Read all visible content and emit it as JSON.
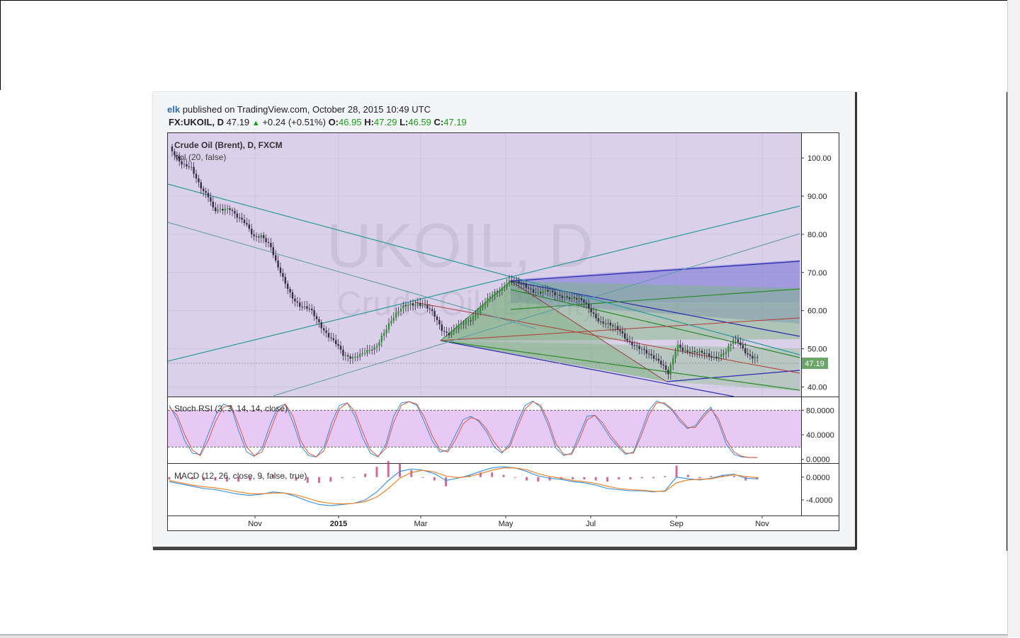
{
  "header": {
    "author": "elk",
    "published_text": "published on TradingView.com, October 28, 2015 10:49 UTC",
    "symbol": "FX:UKOIL, D",
    "last": "47.19",
    "arrow": "▲",
    "change": "+0.24 (+0.51%)",
    "open_label": "O:",
    "open": "46.95",
    "high_label": "H:",
    "high": "47.29",
    "low_label": "L:",
    "low": "46.59",
    "close_label": "C:",
    "close": "47.19"
  },
  "chart_data": [
    {
      "type": "candlestick",
      "title": "Crude Oil (Brent), D, FXCM",
      "indicator_label": "Vol (20, false)",
      "watermark_main": "UKOIL, D",
      "watermark_sub": "Crude Oil (Brent)",
      "x_tick_labels": [
        "Nov",
        "2015",
        "Mar",
        "May",
        "Jul",
        "Sep",
        "Nov"
      ],
      "y_ticks": [
        100,
        90,
        80,
        70,
        60,
        50,
        40
      ],
      "y_tick_labels": [
        "100.00",
        "90.00",
        "80.00",
        "70.00",
        "60.00",
        "50.00",
        "40.00"
      ],
      "ylim": [
        37.5,
        106.5
      ],
      "last_price_label": "47.19",
      "last_price": 47.19,
      "price_path": [
        [
          0,
          103
        ],
        [
          8,
          101
        ],
        [
          18,
          98
        ],
        [
          30,
          97
        ],
        [
          42,
          93
        ],
        [
          55,
          90
        ],
        [
          62,
          86
        ],
        [
          72,
          86
        ],
        [
          85,
          87
        ],
        [
          95,
          85
        ],
        [
          105,
          83
        ],
        [
          118,
          79
        ],
        [
          130,
          80
        ],
        [
          142,
          77
        ],
        [
          150,
          72
        ],
        [
          160,
          68
        ],
        [
          172,
          64
        ],
        [
          185,
          61
        ],
        [
          198,
          60
        ],
        [
          210,
          57
        ],
        [
          222,
          54
        ],
        [
          235,
          51
        ],
        [
          245,
          48
        ],
        [
          255,
          48
        ],
        [
          265,
          48.5
        ],
        [
          278,
          49
        ],
        [
          290,
          50
        ],
        [
          300,
          54
        ],
        [
          310,
          57
        ],
        [
          320,
          59
        ],
        [
          330,
          61
        ],
        [
          340,
          62
        ],
        [
          350,
          62
        ],
        [
          360,
          61
        ],
        [
          372,
          59
        ],
        [
          385,
          55
        ],
        [
          395,
          54
        ],
        [
          410,
          56
        ],
        [
          425,
          58
        ],
        [
          440,
          61
        ],
        [
          455,
          64
        ],
        [
          468,
          66
        ],
        [
          478,
          68
        ],
        [
          490,
          67
        ],
        [
          505,
          66
        ],
        [
          518,
          65
        ],
        [
          532,
          65
        ],
        [
          545,
          64
        ],
        [
          558,
          64
        ],
        [
          572,
          63
        ],
        [
          585,
          62
        ],
        [
          595,
          60
        ],
        [
          608,
          57
        ],
        [
          620,
          56
        ],
        [
          635,
          55
        ],
        [
          648,
          52
        ],
        [
          660,
          50
        ],
        [
          672,
          49
        ],
        [
          685,
          48
        ],
        [
          695,
          46
        ],
        [
          703,
          43
        ],
        [
          710,
          47
        ],
        [
          716,
          51
        ],
        [
          725,
          50
        ],
        [
          740,
          49
        ],
        [
          755,
          48.5
        ],
        [
          770,
          48
        ],
        [
          785,
          49
        ],
        [
          795,
          52
        ],
        [
          802,
          52
        ],
        [
          810,
          50
        ],
        [
          820,
          48
        ],
        [
          830,
          47.2
        ]
      ]
    },
    {
      "type": "line",
      "title": "Stoch RSI (3, 3, 14, 14, close)",
      "y_ticks": [
        80,
        40,
        0
      ],
      "y_tick_labels": [
        "80.0000",
        "40.0000",
        "0.0000"
      ],
      "ylim": [
        -5,
        100
      ],
      "band": [
        20,
        80
      ],
      "series": [
        {
          "color": "#2f8ee0",
          "values": [
            88,
            65,
            30,
            10,
            8,
            40,
            72,
            90,
            85,
            45,
            12,
            5,
            18,
            55,
            85,
            90,
            60,
            22,
            6,
            4,
            20,
            60,
            88,
            92,
            70,
            35,
            10,
            4,
            25,
            70,
            92,
            94,
            88,
            60,
            30,
            12,
            15,
            40,
            65,
            70,
            62,
            45,
            20,
            10,
            25,
            60,
            88,
            95,
            85,
            55,
            18,
            6,
            10,
            40,
            70,
            72,
            55,
            35,
            20,
            8,
            12,
            45,
            80,
            95,
            90,
            80,
            62,
            50,
            55,
            72,
            85,
            60,
            25,
            8,
            4,
            3,
            3
          ]
        },
        {
          "color": "#e0553a",
          "values": [
            85,
            72,
            40,
            15,
            6,
            30,
            62,
            85,
            88,
            55,
            20,
            6,
            12,
            45,
            78,
            90,
            70,
            30,
            10,
            4,
            14,
            50,
            82,
            92,
            78,
            45,
            15,
            5,
            18,
            60,
            88,
            94,
            90,
            68,
            38,
            16,
            12,
            32,
            58,
            68,
            64,
            50,
            28,
            12,
            20,
            52,
            82,
            94,
            88,
            62,
            25,
            8,
            8,
            32,
            64,
            72,
            60,
            40,
            24,
            10,
            10,
            38,
            72,
            92,
            92,
            82,
            66,
            52,
            52,
            68,
            82,
            66,
            32,
            12,
            5,
            3,
            3
          ]
        }
      ]
    },
    {
      "type": "line",
      "title": "MACD (12, 26, close, 9, false, true)",
      "y_ticks": [
        0,
        -4
      ],
      "y_tick_labels": [
        "0.0000",
        "-4.0000"
      ],
      "ylim": [
        -6.6,
        2.2
      ],
      "series": [
        {
          "color": "#2f8ee0",
          "values": [
            -0.8,
            -1.2,
            -1.6,
            -2,
            -2.2,
            -2.6,
            -3,
            -3.2,
            -3,
            -2.6,
            -2.8,
            -3.4,
            -4.2,
            -4.8,
            -5,
            -4.8,
            -4.6,
            -4,
            -2.6,
            -0.6,
            1,
            1.4,
            1.2,
            0.6,
            -0.6,
            -0.2,
            0.3,
            1,
            1.6,
            1.8,
            1.6,
            1,
            0.2,
            -0.2,
            -0.4,
            -0.8,
            -1,
            -1.4,
            -2,
            -2.2,
            -2.4,
            -2.4,
            -2.6,
            -2.4,
            0,
            -0.3,
            -0.5,
            -0.2,
            0.3,
            0.5,
            -0.2,
            -0.3
          ]
        },
        {
          "color": "#f07a1a",
          "values": [
            -0.6,
            -1,
            -1.4,
            -1.7,
            -1.9,
            -2.2,
            -2.6,
            -2.9,
            -2.9,
            -2.8,
            -2.8,
            -3.1,
            -3.7,
            -4.3,
            -4.6,
            -4.7,
            -4.6,
            -4.3,
            -3.5,
            -2,
            -0.2,
            0.8,
            1.2,
            0.9,
            0.2,
            -0.1,
            0.1,
            0.6,
            1.2,
            1.6,
            1.6,
            1.3,
            0.6,
            0.1,
            -0.2,
            -0.6,
            -0.8,
            -1.1,
            -1.6,
            -2,
            -2.2,
            -2.3,
            -2.5,
            -2.5,
            -1,
            -0.5,
            -0.4,
            -0.3,
            0.1,
            0.4,
            0.1,
            -0.1
          ]
        }
      ]
    }
  ],
  "colors": {
    "price_bg": "#dad0ea",
    "candle": "#3a2a48",
    "up_candle": "#2a9a2a",
    "blue_channel": "#2b2bb0",
    "green_channel": "#2a8a2a",
    "teal_line": "#2a9a9a",
    "red_line": "#b03a3a",
    "stoch_band": "#e8c9f6",
    "axis_tag_bg": "#6aa56a"
  }
}
